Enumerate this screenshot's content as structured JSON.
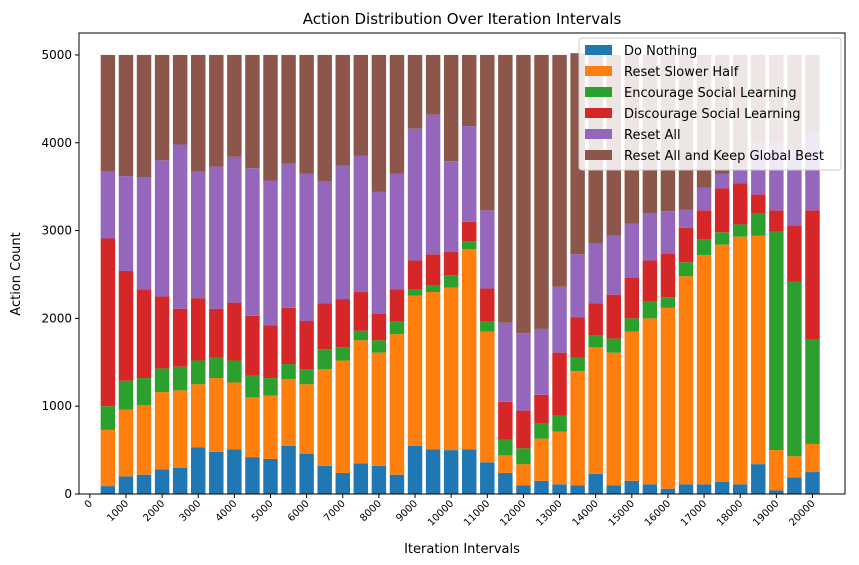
{
  "chart_data": {
    "type": "bar",
    "stacked": true,
    "title": "Action Distribution Over Iteration Intervals",
    "xlabel": "Iteration Intervals",
    "ylabel": "Action Count",
    "xlim": [
      -300,
      20900
    ],
    "ylim": [
      0,
      5250
    ],
    "x_ticks": [
      0,
      1000,
      2000,
      3000,
      4000,
      5000,
      6000,
      7000,
      8000,
      9000,
      10000,
      11000,
      12000,
      13000,
      14000,
      15000,
      16000,
      17000,
      18000,
      19000,
      20000
    ],
    "y_ticks": [
      0,
      1000,
      2000,
      3000,
      4000,
      5000
    ],
    "legend_position": "top-right",
    "x": [
      500,
      1000,
      1500,
      2000,
      2500,
      3000,
      3500,
      4000,
      4500,
      5000,
      5500,
      6000,
      6500,
      7000,
      7500,
      8000,
      8500,
      9000,
      9500,
      10000,
      10500,
      11000,
      11500,
      12000,
      12500,
      13000,
      13500,
      14000,
      14500,
      15000,
      15500,
      16000,
      16500,
      17000,
      17500,
      18000,
      18500,
      19000,
      19500,
      20000
    ],
    "series": [
      {
        "name": "Do Nothing",
        "color": "#1f77b4",
        "values": [
          90,
          200,
          220,
          280,
          300,
          530,
          480,
          510,
          420,
          400,
          550,
          460,
          320,
          240,
          350,
          320,
          220,
          550,
          510,
          500,
          510,
          360,
          240,
          100,
          150,
          110,
          100,
          230,
          100,
          150,
          110,
          60,
          110,
          110,
          140,
          110,
          340,
          40,
          190,
          250
        ]
      },
      {
        "name": "Reset Slower Half",
        "color": "#ff7f0e",
        "values": [
          640,
          760,
          790,
          880,
          880,
          720,
          840,
          760,
          680,
          720,
          760,
          790,
          1100,
          1280,
          1400,
          1290,
          1600,
          1710,
          1790,
          1850,
          2280,
          1490,
          200,
          240,
          480,
          600,
          1300,
          1440,
          1510,
          1700,
          1890,
          2060,
          2370,
          2610,
          2700,
          2820,
          2600,
          460,
          240,
          320
        ]
      },
      {
        "name": "Encourage Social Learning",
        "color": "#2ca02c",
        "values": [
          270,
          330,
          310,
          270,
          270,
          270,
          230,
          250,
          250,
          200,
          170,
          170,
          230,
          150,
          110,
          140,
          150,
          70,
          80,
          140,
          90,
          120,
          180,
          180,
          170,
          180,
          150,
          140,
          160,
          150,
          190,
          120,
          160,
          180,
          140,
          140,
          260,
          2490,
          1990,
          1190
        ]
      },
      {
        "name": "Discourage Social Learning",
        "color": "#d62728",
        "values": [
          1910,
          1250,
          1010,
          820,
          660,
          710,
          560,
          660,
          680,
          600,
          640,
          550,
          520,
          550,
          440,
          300,
          360,
          330,
          350,
          270,
          220,
          370,
          430,
          430,
          330,
          720,
          460,
          360,
          500,
          460,
          470,
          500,
          390,
          330,
          500,
          470,
          210,
          240,
          640,
          1470
        ]
      },
      {
        "name": "Reset All",
        "color": "#9467bd",
        "values": [
          760,
          1080,
          1280,
          1550,
          1870,
          1440,
          1620,
          1660,
          1680,
          1650,
          1640,
          1680,
          1390,
          1520,
          1550,
          1390,
          1320,
          1500,
          1590,
          1030,
          1090,
          890,
          900,
          880,
          750,
          750,
          720,
          680,
          670,
          620,
          540,
          480,
          210,
          260,
          170,
          180,
          590,
          780,
          860,
          880
        ]
      },
      {
        "name": "Reset All and Keep Global Best",
        "color": "#8c564b",
        "values": [
          1330,
          1380,
          1390,
          1200,
          1020,
          1330,
          1270,
          1160,
          1290,
          1430,
          1240,
          1350,
          1440,
          1260,
          1150,
          1560,
          1350,
          840,
          680,
          1210,
          810,
          1770,
          3050,
          3170,
          3120,
          2640,
          2290,
          2150,
          2060,
          1920,
          1800,
          1780,
          1760,
          1510,
          1350,
          1280,
          1000,
          990,
          1080,
          890
        ]
      }
    ]
  }
}
